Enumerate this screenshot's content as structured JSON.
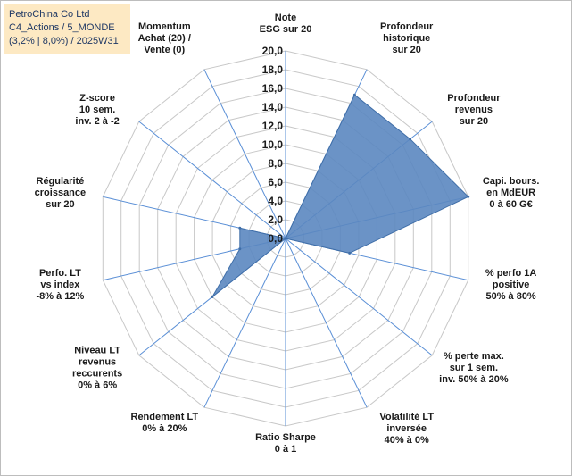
{
  "info_box": {
    "line1": "PetroChina Co Ltd",
    "line2": "C4_Actions / 5_MONDE",
    "line3": "(3,2% | 8,0%) / 2025W31"
  },
  "chart_data": {
    "type": "radar",
    "rmin": 0,
    "rmax": 20,
    "tick_values": [
      0,
      2,
      4,
      6,
      8,
      10,
      12,
      14,
      16,
      18,
      20
    ],
    "tick_labels": [
      "0,0",
      "2,0",
      "4,0",
      "6,0",
      "8,0",
      "10,0",
      "12,0",
      "14,0",
      "16,0",
      "18,0",
      "20,0"
    ],
    "categories": [
      [
        "Note",
        "ESG sur 20"
      ],
      [
        "Profondeur",
        "historique",
        "sur 20"
      ],
      [
        "Profondeur",
        "revenus",
        "sur 20"
      ],
      [
        "Capi. bours.",
        "en MdEUR",
        "0 à 60 G€"
      ],
      [
        "% perfo 1A",
        "positive",
        "50% à 80%"
      ],
      [
        "% perte max.",
        "sur 1 sem.",
        "inv. 50% à 20%"
      ],
      [
        "Volatilité LT",
        "inversée",
        "40% à 0%"
      ],
      [
        "Ratio Sharpe",
        "0 à 1"
      ],
      [
        "Rendement LT",
        "0% à 20%"
      ],
      [
        "Niveau LT",
        "revenus",
        "reccurents",
        "0% à 6%"
      ],
      [
        "Perfo. LT",
        "vs index",
        "-8% à 12%"
      ],
      [
        "Régularité",
        "croissance",
        "sur 20"
      ],
      [
        "Z-score",
        "10 sem.",
        "inv. 2 à -2"
      ],
      [
        "Momentum",
        "Achat (20) /",
        "Vente (0)"
      ]
    ],
    "values": [
      0,
      17,
      17,
      20,
      7,
      0,
      0,
      0,
      0,
      10,
      5,
      5,
      0,
      0
    ],
    "fill_color": "#5b87c0",
    "line_color": "#3f6ea8",
    "grid_color": "#c8c8c8",
    "spoke_color": "#5a8fd6",
    "grid": true,
    "legend": "none"
  }
}
